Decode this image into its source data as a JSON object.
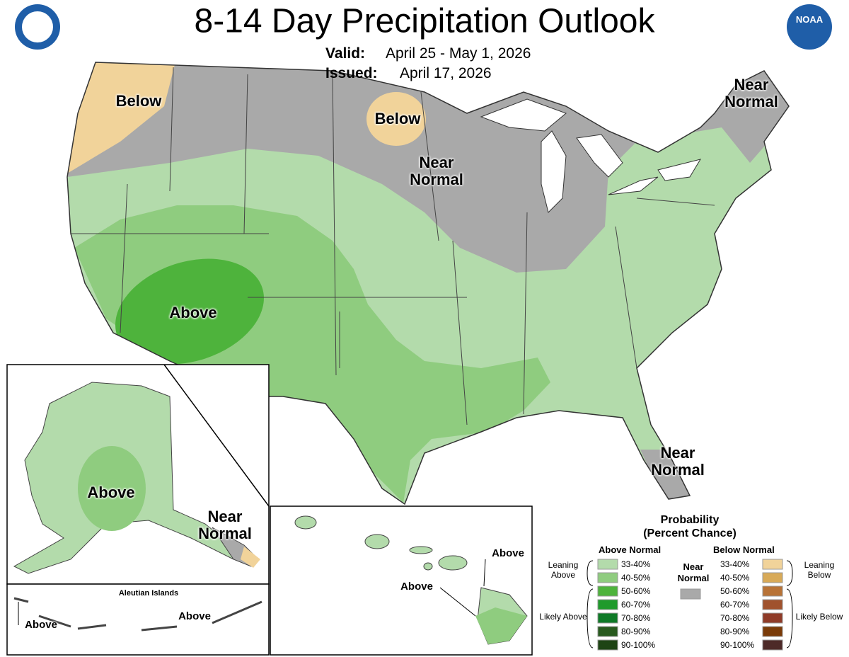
{
  "header": {
    "title": "8-14 Day Precipitation Outlook",
    "valid_label": "Valid:",
    "valid": "April 25 - May 1, 2026",
    "issued_label": "Issued:",
    "issued": "April 17, 2026",
    "logo": "NOAA"
  },
  "map_labels": [
    "Below",
    "Below",
    "Near Normal",
    "Near Normal",
    "Above",
    "Near Normal",
    "Above",
    "Near Normal",
    "Aleutian Islands",
    "Above",
    "Above",
    "Above",
    "Above"
  ],
  "legend": {
    "title": "Probability",
    "subtitle": "(Percent Chance)",
    "above": {
      "heading": "Above Normal",
      "leaning": "Leaning Above",
      "likely": "Likely Above",
      "items": [
        {
          "label": "33-40%",
          "color": "#b3dbab"
        },
        {
          "label": "40-50%",
          "color": "#8fcc7f"
        },
        {
          "label": "50-60%",
          "color": "#4eb33c"
        },
        {
          "label": "60-70%",
          "color": "#1f9a2b"
        },
        {
          "label": "70-80%",
          "color": "#0e7a26"
        },
        {
          "label": "80-90%",
          "color": "#285a1e"
        },
        {
          "label": "90-100%",
          "color": "#1e4414"
        }
      ]
    },
    "near": {
      "heading": "Near Normal",
      "color": "#a9a9a9"
    },
    "below": {
      "heading": "Below Normal",
      "leaning": "Leaning Below",
      "likely": "Likely Below",
      "items": [
        {
          "label": "33-40%",
          "color": "#f1d39a"
        },
        {
          "label": "40-50%",
          "color": "#d8aa58"
        },
        {
          "label": "50-60%",
          "color": "#b87337"
        },
        {
          "label": "60-70%",
          "color": "#a0522d"
        },
        {
          "label": "70-80%",
          "color": "#8f3b28"
        },
        {
          "label": "80-90%",
          "color": "#7a3b08"
        },
        {
          "label": "90-100%",
          "color": "#4d2a28"
        }
      ]
    }
  }
}
